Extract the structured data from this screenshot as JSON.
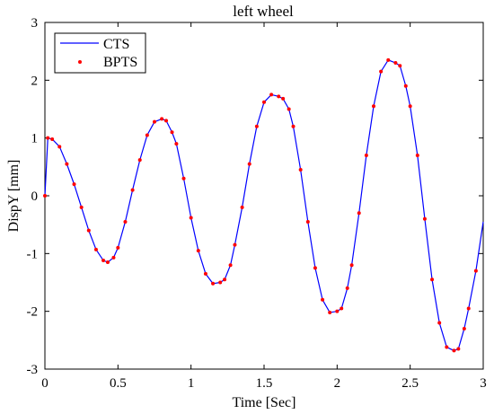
{
  "chart_data": {
    "type": "line",
    "title": "left wheel",
    "xlabel": "Time [Sec]",
    "ylabel": "DispY [mm]",
    "xlim": [
      0,
      3
    ],
    "ylim": [
      -3,
      3
    ],
    "x_ticks": [
      "0",
      "0.5",
      "1",
      "1.5",
      "2",
      "2.5",
      "3"
    ],
    "y_ticks": [
      "-3",
      "-2",
      "-1",
      "0",
      "1",
      "2",
      "3"
    ],
    "grid": false,
    "legend_position": "top-left",
    "colors": {
      "CTS": "#0000ff",
      "BPTS": "#ff0000"
    },
    "series": [
      {
        "name": "CTS",
        "style": "line",
        "x": [
          0,
          0.02,
          0.05,
          0.1,
          0.15,
          0.2,
          0.25,
          0.3,
          0.35,
          0.4,
          0.43,
          0.47,
          0.5,
          0.55,
          0.6,
          0.65,
          0.7,
          0.75,
          0.8,
          0.83,
          0.87,
          0.9,
          0.95,
          1.0,
          1.05,
          1.1,
          1.15,
          1.2,
          1.23,
          1.27,
          1.3,
          1.35,
          1.4,
          1.45,
          1.5,
          1.55,
          1.6,
          1.63,
          1.67,
          1.7,
          1.75,
          1.8,
          1.85,
          1.9,
          1.95,
          2.0,
          2.03,
          2.07,
          2.1,
          2.15,
          2.2,
          2.25,
          2.3,
          2.35,
          2.4,
          2.43,
          2.47,
          2.5,
          2.55,
          2.6,
          2.65,
          2.7,
          2.75,
          2.8,
          2.83,
          2.87,
          2.9,
          2.95,
          3.0
        ],
        "y": [
          0,
          1.0,
          0.98,
          0.85,
          0.55,
          0.2,
          -0.2,
          -0.6,
          -0.93,
          -1.12,
          -1.15,
          -1.07,
          -0.9,
          -0.45,
          0.1,
          0.62,
          1.05,
          1.28,
          1.33,
          1.3,
          1.1,
          0.9,
          0.3,
          -0.38,
          -0.95,
          -1.35,
          -1.52,
          -1.5,
          -1.45,
          -1.2,
          -0.85,
          -0.2,
          0.55,
          1.2,
          1.62,
          1.75,
          1.72,
          1.68,
          1.5,
          1.2,
          0.45,
          -0.45,
          -1.25,
          -1.8,
          -2.02,
          -2.0,
          -1.95,
          -1.6,
          -1.2,
          -0.3,
          0.7,
          1.55,
          2.15,
          2.35,
          2.3,
          2.25,
          1.9,
          1.55,
          0.7,
          -0.4,
          -1.45,
          -2.2,
          -2.62,
          -2.68,
          -2.65,
          -2.3,
          -1.95,
          -1.3,
          -0.45
        ]
      },
      {
        "name": "BPTS",
        "style": "markers",
        "x": [
          0,
          0.02,
          0.05,
          0.1,
          0.15,
          0.2,
          0.25,
          0.3,
          0.35,
          0.4,
          0.43,
          0.47,
          0.5,
          0.55,
          0.6,
          0.65,
          0.7,
          0.75,
          0.8,
          0.83,
          0.87,
          0.9,
          0.95,
          1.0,
          1.05,
          1.1,
          1.15,
          1.2,
          1.23,
          1.27,
          1.3,
          1.35,
          1.4,
          1.45,
          1.5,
          1.55,
          1.6,
          1.63,
          1.67,
          1.7,
          1.75,
          1.8,
          1.85,
          1.9,
          1.95,
          2.0,
          2.03,
          2.07,
          2.1,
          2.15,
          2.2,
          2.25,
          2.3,
          2.35,
          2.4,
          2.43,
          2.47,
          2.5,
          2.55,
          2.6,
          2.65,
          2.7,
          2.75,
          2.8,
          2.83,
          2.87,
          2.9,
          2.95
        ],
        "y": [
          0,
          1.0,
          0.98,
          0.85,
          0.55,
          0.2,
          -0.2,
          -0.6,
          -0.93,
          -1.12,
          -1.15,
          -1.07,
          -0.9,
          -0.45,
          0.1,
          0.62,
          1.05,
          1.28,
          1.33,
          1.3,
          1.1,
          0.9,
          0.3,
          -0.38,
          -0.95,
          -1.35,
          -1.52,
          -1.5,
          -1.45,
          -1.2,
          -0.85,
          -0.2,
          0.55,
          1.2,
          1.62,
          1.75,
          1.72,
          1.68,
          1.5,
          1.2,
          0.45,
          -0.45,
          -1.25,
          -1.8,
          -2.02,
          -2.0,
          -1.95,
          -1.6,
          -1.2,
          -0.3,
          0.7,
          1.55,
          2.15,
          2.35,
          2.3,
          2.25,
          1.9,
          1.55,
          0.7,
          -0.4,
          -1.45,
          -2.2,
          -2.62,
          -2.68,
          -2.65,
          -2.3,
          -1.95,
          -1.3
        ]
      }
    ]
  }
}
